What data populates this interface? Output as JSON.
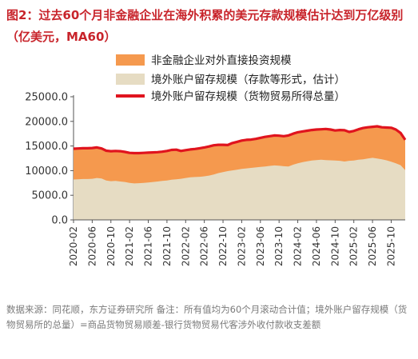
{
  "figure": {
    "title": "图2：过去60个月非金融企业在海外积累的美元存款规模估计达到万亿级别（亿美元，MA60）",
    "footnote": "数据来源：同花顺，东方证券研究所 备注：所有值均为60个月滚动合计值；境外账户留存规模（货物贸易所的总量）=商品货物贸易顺差-银行货物贸易代客涉外收付款收支差额"
  },
  "chart_data": {
    "type": "area",
    "x": [
      "2020-02",
      "2020-03",
      "2020-04",
      "2020-05",
      "2020-06",
      "2020-07",
      "2020-08",
      "2020-09",
      "2020-10",
      "2020-11",
      "2020-12",
      "2021-01",
      "2021-02",
      "2021-03",
      "2021-04",
      "2021-05",
      "2021-06",
      "2021-07",
      "2021-08",
      "2021-09",
      "2021-10",
      "2021-11",
      "2021-12",
      "2022-01",
      "2022-02",
      "2022-03",
      "2022-04",
      "2022-05",
      "2022-06",
      "2022-07",
      "2022-08",
      "2022-09",
      "2022-10",
      "2022-11",
      "2022-12",
      "2023-01",
      "2023-02",
      "2023-03",
      "2023-04",
      "2023-05",
      "2023-06",
      "2023-07",
      "2023-08",
      "2023-09",
      "2023-10",
      "2023-11",
      "2023-12",
      "2024-01",
      "2024-02",
      "2024-03",
      "2024-04",
      "2024-05",
      "2024-06",
      "2024-07",
      "2024-08",
      "2024-09",
      "2024-10",
      "2024-11",
      "2024-12",
      "2025-01",
      "2025-02",
      "2025-03",
      "2025-04",
      "2025-05",
      "2025-06",
      "2025-07",
      "2025-08",
      "2025-09",
      "2025-10",
      "2025-11",
      "2025-12",
      "2026-01"
    ],
    "x_tick_labels": [
      "2020-02",
      "2020-06",
      "2020-10",
      "2021-02",
      "2021-06",
      "2021-10",
      "2022-02",
      "2022-06",
      "2022-10",
      "2023-02",
      "2023-06",
      "2023-10",
      "2024-02",
      "2024-06",
      "2024-10",
      "2025-02",
      "2025-06",
      "2025-10"
    ],
    "ylim": [
      0,
      25000
    ],
    "y_ticks": [
      "0.0",
      "5000.0",
      "10000.0",
      "15000.0",
      "20000.0",
      "25000.0"
    ],
    "legend": [
      "非金融企业对外直接投资规模",
      "境外账户留存规模（存款等形式，估计）",
      "境外账户留存规模（货物贸易所得总量）"
    ],
    "legend_position": "top",
    "colors": {
      "fdi": "#f5994e",
      "deposit": "#e6dcc3",
      "total": "#e0141e"
    },
    "series": [
      {
        "name": "境外账户留存规模（存款等形式，估计）",
        "values": [
          8200,
          8250,
          8300,
          8300,
          8350,
          8500,
          8400,
          8000,
          7850,
          7900,
          7800,
          7700,
          7500,
          7400,
          7450,
          7500,
          7600,
          7700,
          7800,
          7900,
          8000,
          8150,
          8250,
          8350,
          8500,
          8650,
          8700,
          8750,
          8850,
          9000,
          9200,
          9500,
          9700,
          9900,
          10050,
          10200,
          10350,
          10450,
          10550,
          10650,
          10750,
          10850,
          10950,
          11050,
          11000,
          10900,
          10850,
          11200,
          11500,
          11700,
          11900,
          12050,
          12150,
          12200,
          12150,
          12100,
          12050,
          12000,
          11850,
          12000,
          12050,
          12200,
          12300,
          12450,
          12600,
          12450,
          12300,
          12100,
          11800,
          11500,
          11100,
          10100
        ]
      },
      {
        "name": "境外账户留存规模（货物贸易所得总量）",
        "values": [
          14450,
          14500,
          14550,
          14550,
          14600,
          14700,
          14500,
          14050,
          13950,
          14000,
          13950,
          13800,
          13600,
          13550,
          13550,
          13600,
          13650,
          13700,
          13750,
          13850,
          14000,
          14200,
          14250,
          14000,
          14150,
          14300,
          14400,
          14550,
          14700,
          14900,
          15150,
          15250,
          15250,
          15200,
          15600,
          15850,
          16100,
          16250,
          16300,
          16450,
          16650,
          16850,
          17000,
          17150,
          17100,
          17000,
          17150,
          17500,
          17800,
          17950,
          18100,
          18250,
          18350,
          18400,
          18450,
          18350,
          18150,
          18250,
          18200,
          17850,
          18050,
          18400,
          18650,
          18800,
          18900,
          19000,
          18800,
          18750,
          18700,
          18350,
          17650,
          16250
        ]
      }
    ]
  }
}
